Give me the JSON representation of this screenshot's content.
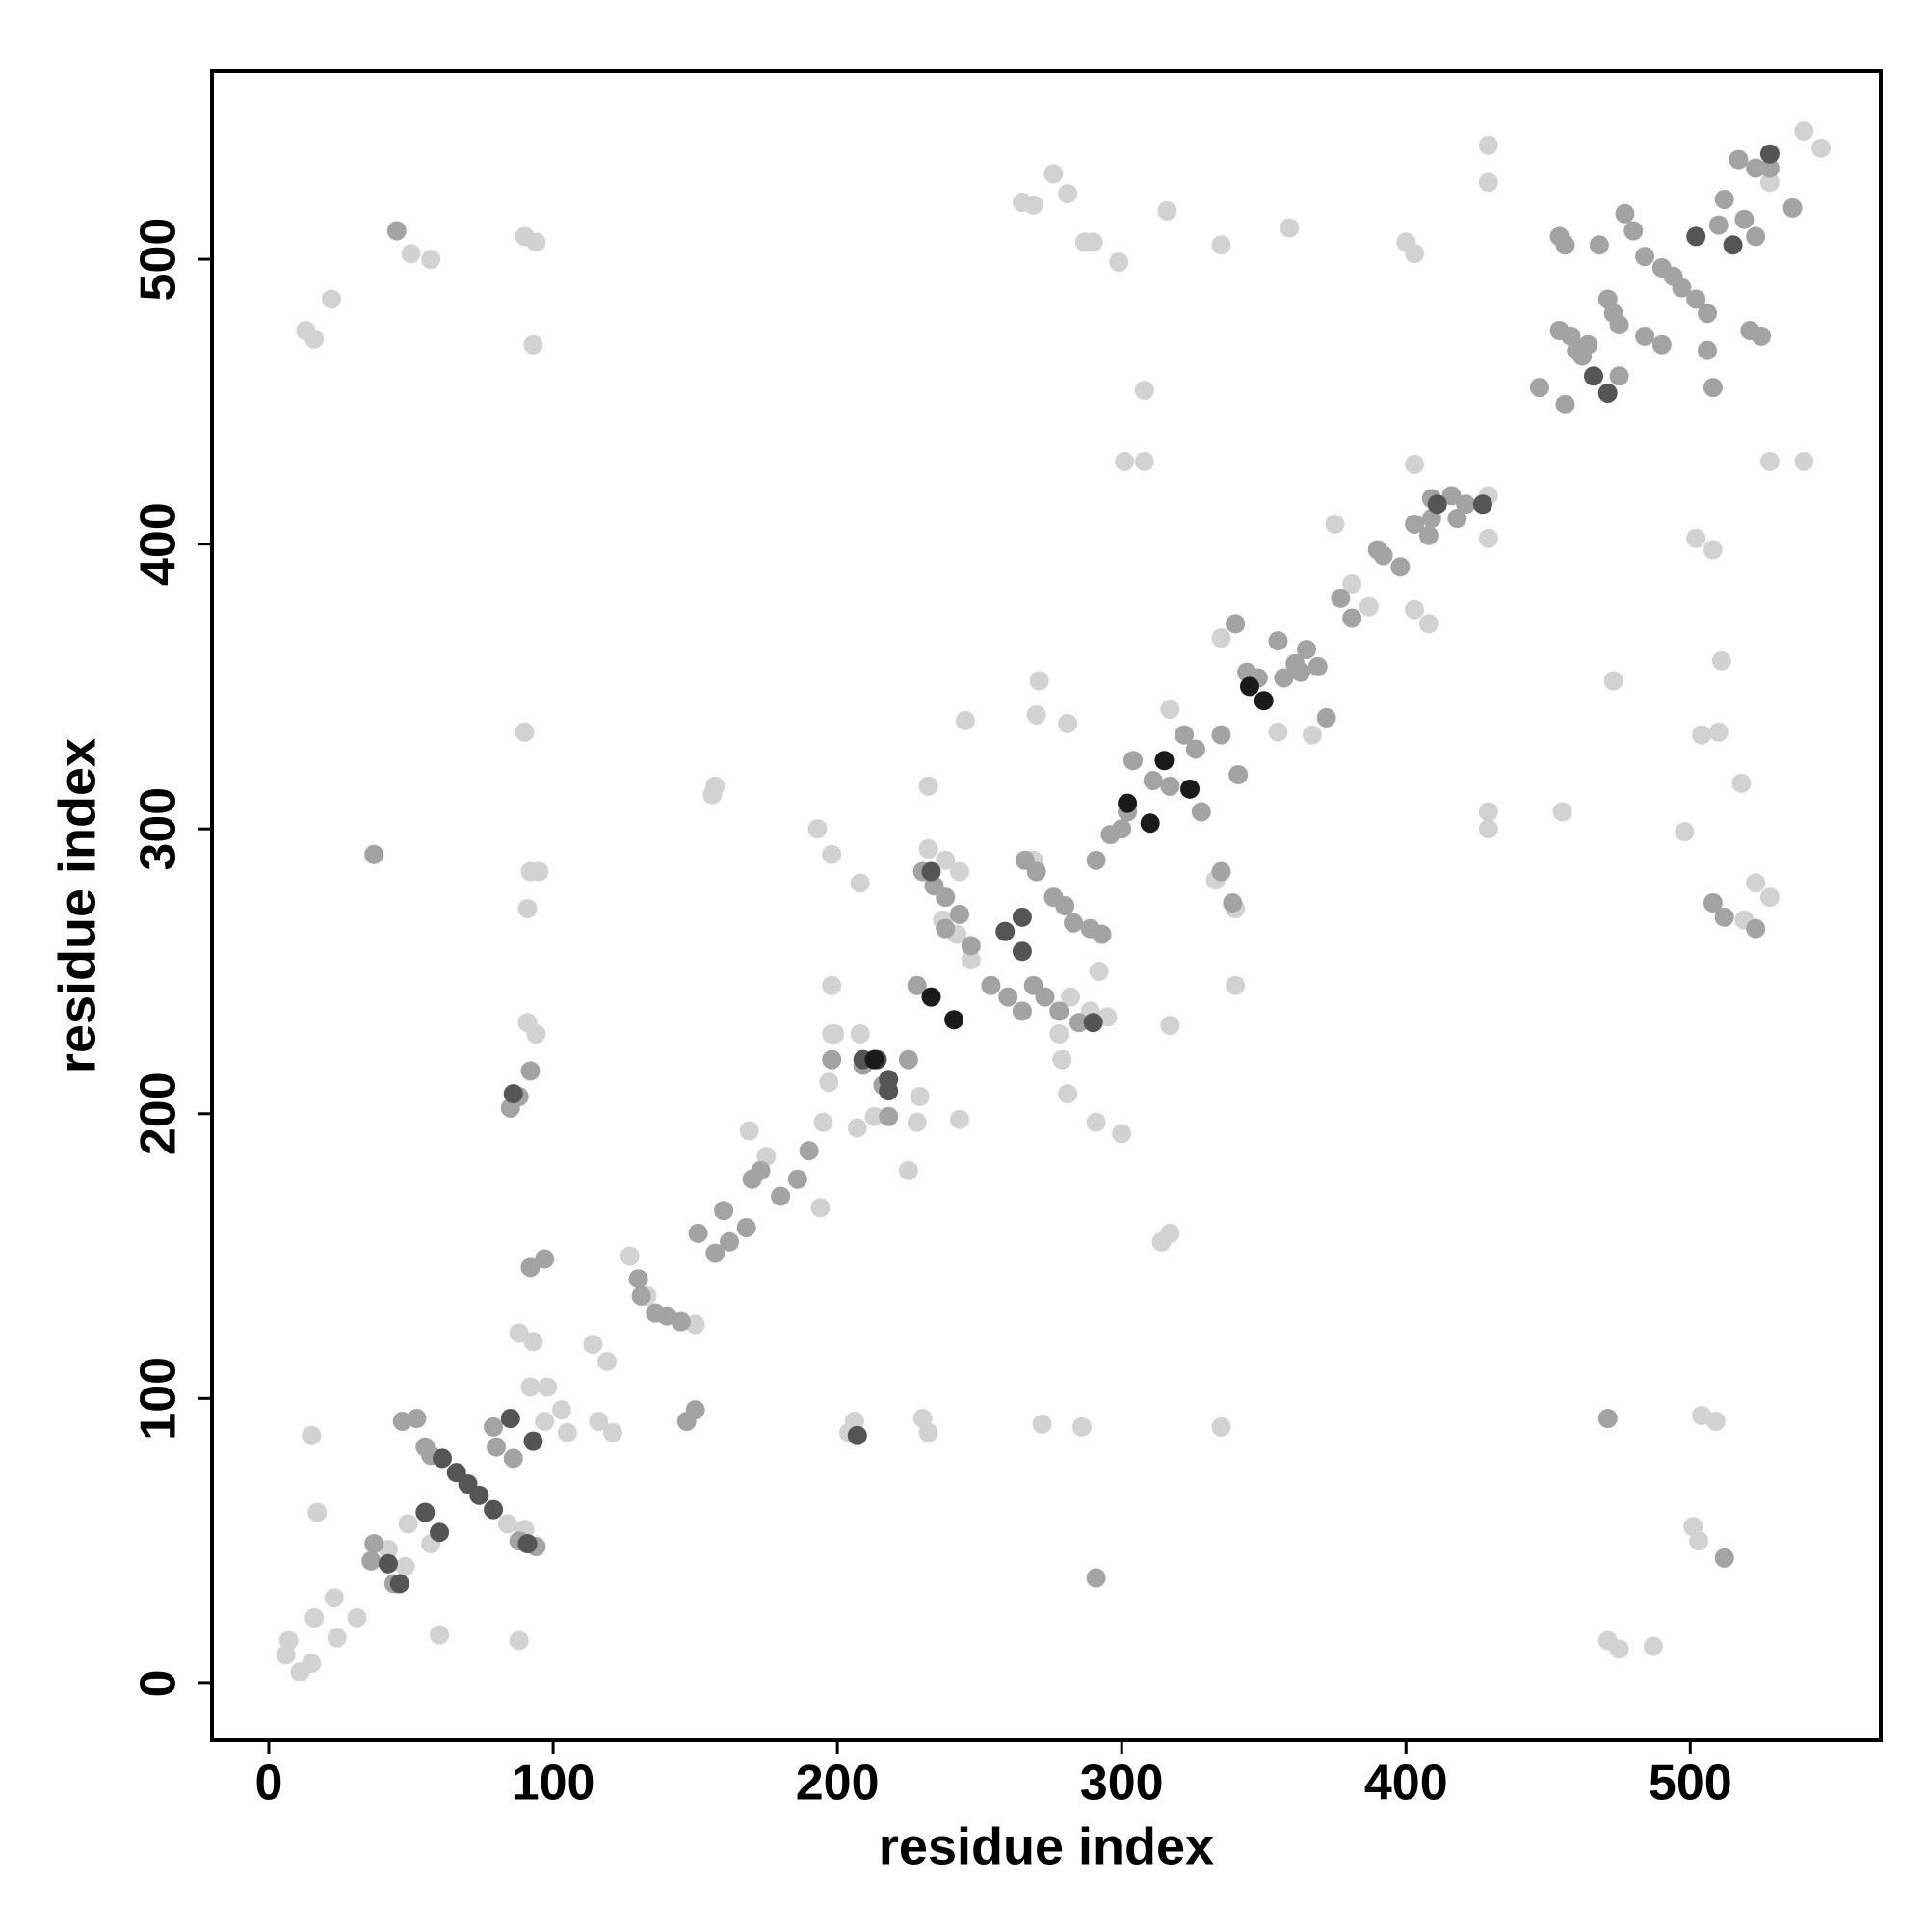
{
  "chart_data": {
    "type": "scatter",
    "xlabel": "residue index",
    "ylabel": "residue index",
    "xlim": [
      -20,
      567
    ],
    "ylim": [
      -20,
      566
    ],
    "xticks": [
      0,
      100,
      200,
      300,
      400,
      500
    ],
    "yticks": [
      0,
      100,
      200,
      300,
      400,
      500
    ],
    "grid": false,
    "series": [
      {
        "color": "#d2d2d2",
        "x": [
          6,
          7,
          11,
          15,
          16,
          23,
          24,
          31,
          17,
          15,
          42,
          48,
          49,
          57,
          60,
          88,
          90,
          84,
          88,
          93,
          92,
          98,
          103,
          105,
          97,
          114,
          119,
          116,
          121,
          127,
          150,
          133,
          157,
          156,
          169,
          175,
          194,
          193,
          198,
          198,
          198,
          197,
          195,
          207,
          208,
          225,
          228,
          243,
          245,
          232,
          230,
          232,
          204,
          206,
          272,
          286,
          271,
          270,
          281,
          281,
          279,
          291,
          300,
          292,
          335,
          317,
          314,
          317,
          340,
          340,
          333,
          317,
          335,
          355,
          367,
          375,
          381,
          387,
          403,
          403,
          408,
          429,
          429,
          429,
          429,
          455,
          308,
          301,
          308,
          299,
          316,
          335,
          359,
          400,
          403,
          429,
          429,
          528,
          540,
          546,
          528,
          540,
          502,
          508,
          510,
          504,
          498,
          518,
          511,
          473,
          528,
          523,
          519,
          501,
          503,
          509,
          471,
          475,
          487,
          504,
          22,
          13,
          16,
          50,
          57,
          90,
          94,
          93,
          90,
          92,
          95,
          91,
          91,
          94,
          265,
          269,
          276,
          281,
          287,
          290,
          232,
          238,
          243,
          237,
          242,
          247,
          282,
          289,
          295,
          278,
          269,
          199,
          208,
          229,
          213
        ],
        "y": [
          10,
          15,
          4,
          7,
          23,
          30,
          16,
          23,
          60,
          87,
          47,
          41,
          56,
          49,
          17,
          15,
          54,
          56,
          123,
          120,
          104,
          104,
          96,
          88,
          92,
          119,
          113,
          92,
          88,
          150,
          126,
          136,
          315,
          312,
          194,
          185,
          167,
          300,
          291,
          245,
          228,
          211,
          197,
          195,
          281,
          180,
          197,
          198,
          338,
          315,
          93,
          88,
          88,
          92,
          91,
          90,
          352,
          340,
          337,
          207,
          219,
          197,
          193,
          250,
          90,
          231,
          155,
          158,
          245,
          272,
          282,
          342,
          367,
          334,
          333,
          407,
          386,
          378,
          428,
          377,
          372,
          417,
          402,
          306,
          300,
          306,
          454,
          429,
          429,
          499,
          517,
          505,
          511,
          506,
          502,
          540,
          527,
          527,
          545,
          539,
          429,
          429,
          402,
          398,
          334,
          333,
          299,
          316,
          359,
          352,
          276,
          281,
          268,
          55,
          50,
          92,
          15,
          12,
          13,
          94,
          486,
          475,
          472,
          502,
          500,
          508,
          506,
          470,
          334,
          285,
          285,
          272,
          232,
          228,
          520,
          519,
          530,
          523,
          506,
          506,
          293,
          289,
          285,
          268,
          263,
          254,
          241,
          236,
          234,
          228,
          289,
          228,
          228,
          206,
          199
        ]
      },
      {
        "color": "#a3a3a3",
        "x": [
          37,
          36,
          44,
          47,
          52,
          55,
          57,
          79,
          80,
          86,
          88,
          94,
          92,
          97,
          85,
          88,
          130,
          131,
          136,
          140,
          145,
          147,
          150,
          151,
          157,
          160,
          162,
          168,
          170,
          173,
          180,
          186,
          190,
          198,
          209,
          216,
          218,
          225,
          228,
          230,
          234,
          238,
          238,
          243,
          247,
          254,
          260,
          265,
          266,
          270,
          276,
          280,
          283,
          289,
          293,
          269,
          273,
          278,
          285,
          291,
          296,
          300,
          302,
          304,
          311,
          317,
          322,
          326,
          328,
          335,
          339,
          341,
          335,
          340,
          344,
          355,
          361,
          365,
          372,
          377,
          381,
          390,
          392,
          398,
          403,
          408,
          409,
          416,
          418,
          348,
          357,
          363,
          369,
          454,
          456,
          454,
          458,
          460,
          462,
          464,
          468,
          471,
          473,
          475,
          477,
          475,
          480,
          484,
          490,
          494,
          497,
          502,
          506,
          484,
          490,
          506,
          508,
          510,
          512,
          519,
          523,
          521,
          525,
          517,
          523,
          528,
          536,
          508,
          512,
          523,
          447,
          456,
          471,
          512,
          291,
          37,
          45,
          92,
          409,
          421
        ],
        "y": [
          49,
          43,
          35,
          92,
          93,
          83,
          80,
          90,
          83,
          79,
          50,
          48,
          146,
          149,
          202,
          206,
          142,
          136,
          130,
          129,
          127,
          92,
          96,
          158,
          151,
          166,
          155,
          160,
          177,
          180,
          171,
          177,
          187,
          219,
          217,
          210,
          199,
          219,
          245,
          285,
          280,
          276,
          265,
          270,
          259,
          245,
          241,
          236,
          289,
          285,
          276,
          273,
          267,
          265,
          263,
          245,
          241,
          236,
          232,
          289,
          298,
          300,
          306,
          324,
          317,
          315,
          333,
          328,
          306,
          285,
          274,
          319,
          333,
          372,
          355,
          366,
          358,
          363,
          339,
          381,
          374,
          398,
          396,
          392,
          407,
          403,
          416,
          417,
          409,
          353,
          353,
          355,
          357,
          508,
          505,
          475,
          473,
          468,
          466,
          470,
          505,
          486,
          481,
          477,
          516,
          459,
          510,
          501,
          497,
          494,
          490,
          486,
          481,
          473,
          470,
          468,
          455,
          512,
          521,
          514,
          508,
          475,
          473,
          535,
          532,
          532,
          518,
          274,
          269,
          265,
          455,
          449,
          93,
          44,
          37,
          291,
          510,
          215,
          409,
          414
        ]
      },
      {
        "color": "#555555",
        "x": [
          42,
          46,
          55,
          60,
          61,
          66,
          70,
          74,
          79,
          85,
          93,
          91,
          86,
          207,
          209,
          214,
          218,
          218,
          233,
          259,
          265,
          265,
          290,
          528,
          502,
          515,
          411,
          427,
          466,
          471
        ],
        "y": [
          42,
          35,
          60,
          53,
          79,
          74,
          70,
          66,
          61,
          93,
          85,
          49,
          207,
          87,
          219,
          219,
          212,
          208,
          285,
          264,
          257,
          269,
          232,
          537,
          508,
          505,
          414,
          414,
          459,
          453
        ]
      },
      {
        "color": "#1a1a1a",
        "x": [
          233,
          241,
          213,
          302,
          310,
          345,
          350,
          315,
          324
        ],
        "y": [
          241,
          233,
          219,
          309,
          302,
          350,
          345,
          324,
          314
        ]
      }
    ]
  }
}
